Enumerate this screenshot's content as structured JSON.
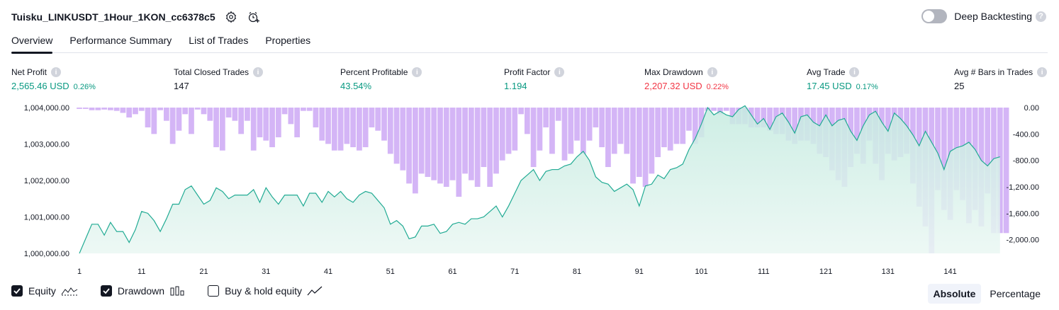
{
  "header": {
    "title": "Tuisku_LINKUSDT_1Hour_1KON_cc6378c5",
    "deep_backtesting_label": "Deep Backtesting",
    "help_icon_text": "?"
  },
  "tabs": [
    {
      "label": "Overview"
    },
    {
      "label": "Performance Summary"
    },
    {
      "label": "List of Trades"
    },
    {
      "label": "Properties"
    }
  ],
  "stats": [
    {
      "label": "Net Profit",
      "value": "2,565.46 USD",
      "pct": "0.26%"
    },
    {
      "label": "Total Closed Trades",
      "value": "147"
    },
    {
      "label": "Percent Profitable",
      "value": "43.54%"
    },
    {
      "label": "Profit Factor",
      "value": "1.194"
    },
    {
      "label": "Max Drawdown",
      "value": "2,207.32 USD",
      "pct": "0.22%"
    },
    {
      "label": "Avg Trade",
      "value": "17.45 USD",
      "pct": "0.17%"
    },
    {
      "label": "Avg # Bars in Trades",
      "value": "25"
    }
  ],
  "info_icon_text": "i",
  "colors": {
    "green": "#089981",
    "red": "#f23645",
    "equity_line": "#22ab94",
    "equity_fill_top": "#c5ebe0",
    "drawdown_bar": "#d4b5f6",
    "drawdown_bar_overlap": "#b9b3e8",
    "text": "#131722"
  },
  "chart_data": {
    "type": "area+bar",
    "x_ticks": [
      1,
      11,
      21,
      31,
      41,
      51,
      61,
      71,
      81,
      91,
      101,
      111,
      121,
      131,
      141
    ],
    "x_range": [
      1,
      148
    ],
    "left_axis": {
      "ticks": [
        "1,004,000.00",
        "1,003,000.00",
        "1,002,000.00",
        "1,001,000.00",
        "1,000,000.00"
      ],
      "range": [
        1000000,
        1004000
      ]
    },
    "right_axis": {
      "ticks": [
        "0.00",
        "-400.00",
        "-800.00",
        "-1,200.00",
        "-1,600.00",
        "-2,000.00"
      ],
      "range": [
        -2207.32,
        0
      ]
    },
    "equity_series": {
      "name": "Equity",
      "values": [
        1000000,
        1000400,
        1000800,
        1000800,
        1000500,
        1000850,
        1000600,
        1000600,
        1000300,
        1000650,
        1001150,
        1001100,
        1000900,
        1000600,
        1000950,
        1001350,
        1001350,
        1001750,
        1001850,
        1001600,
        1001350,
        1001450,
        1001800,
        1001700,
        1001500,
        1001600,
        1001600,
        1001600,
        1001750,
        1001400,
        1001800,
        1001550,
        1001350,
        1001600,
        1001600,
        1001600,
        1001300,
        1001650,
        1001650,
        1001400,
        1001700,
        1001550,
        1001700,
        1001500,
        1001400,
        1001600,
        1001700,
        1001650,
        1001450,
        1001250,
        1000800,
        1000900,
        1000750,
        1000400,
        1000450,
        1000750,
        1000750,
        1000800,
        1000550,
        1000600,
        1000800,
        1000850,
        1000800,
        1000950,
        1000950,
        1001000,
        1001150,
        1001300,
        1001000,
        1001300,
        1001650,
        1002000,
        1002150,
        1002300,
        1002000,
        1002250,
        1002300,
        1002300,
        1002400,
        1002450,
        1002650,
        1002800,
        1002550,
        1002100,
        1001950,
        1001900,
        1001700,
        1001800,
        1001900,
        1001750,
        1001300,
        1001850,
        1001900,
        1002150,
        1002050,
        1002300,
        1002350,
        1002450,
        1002850,
        1003150,
        1003550,
        1004000,
        1003800,
        1003900,
        1003800,
        1003750,
        1003950,
        1004050,
        1003800,
        1003550,
        1003700,
        1003400,
        1003750,
        1003850,
        1003600,
        1003300,
        1003750,
        1003800,
        1003600,
        1003500,
        1003800,
        1003500,
        1003650,
        1003700,
        1003350,
        1003100,
        1003500,
        1003800,
        1003900,
        1003600,
        1003350,
        1003850,
        1003700,
        1003500,
        1003250,
        1002950,
        1003350,
        1003050,
        1002750,
        1002300,
        1002800,
        1002900,
        1002950,
        1003050,
        1002850,
        1002550,
        1002400,
        1002600,
        1002650
      ]
    },
    "drawdown_series": {
      "name": "Drawdown",
      "values": [
        -20,
        -20,
        -40,
        -40,
        -30,
        -40,
        -50,
        -80,
        -150,
        -100,
        -50,
        -300,
        -400,
        -40,
        -200,
        -550,
        -350,
        -100,
        -400,
        -30,
        -100,
        -200,
        -600,
        -650,
        -150,
        -200,
        -400,
        -200,
        -650,
        -450,
        -500,
        -600,
        -450,
        -100,
        -250,
        -450,
        -50,
        -50,
        -300,
        -500,
        -550,
        -650,
        -650,
        -550,
        -600,
        -650,
        -600,
        -300,
        -350,
        -500,
        -700,
        -850,
        -950,
        -1150,
        -1300,
        -1000,
        -1050,
        -1100,
        -1150,
        -1200,
        -1100,
        -1350,
        -1000,
        -1100,
        -1200,
        -900,
        -1200,
        -1000,
        -800,
        -700,
        -650,
        -100,
        -400,
        -900,
        -650,
        -300,
        -700,
        -200,
        -800,
        -700,
        -500,
        -700,
        -500,
        -300,
        -600,
        -900,
        -700,
        -550,
        -700,
        -1150,
        -1050,
        -1200,
        -1000,
        -750,
        -600,
        -650,
        -550,
        -550,
        -350,
        -550,
        -450,
        -50,
        -50,
        -100,
        -50,
        -250,
        -250,
        -250,
        -300,
        -300,
        -300,
        -350,
        -400,
        -400,
        -500,
        -550,
        -500,
        -500,
        -550,
        -700,
        -750,
        -950,
        -1100,
        -1200,
        -900,
        -700,
        -850,
        -500,
        -850,
        -1100,
        -700,
        -800,
        -750,
        -700,
        -1150,
        -1500,
        -1800,
        -2207,
        -1250,
        -1550,
        -1700,
        -1250,
        -1400,
        -1750,
        -1550,
        -1800,
        -1300,
        -1900,
        -1900,
        -1900
      ]
    },
    "legend": [
      "Equity",
      "Drawdown",
      "Buy & hold equity"
    ],
    "legend_state": {
      "Equity": true,
      "Drawdown": true,
      "Buy & hold equity": false
    }
  },
  "legend": {
    "equity": "Equity",
    "drawdown": "Drawdown",
    "buy_hold": "Buy & hold equity"
  },
  "modes": {
    "absolute": "Absolute",
    "percentage": "Percentage"
  }
}
